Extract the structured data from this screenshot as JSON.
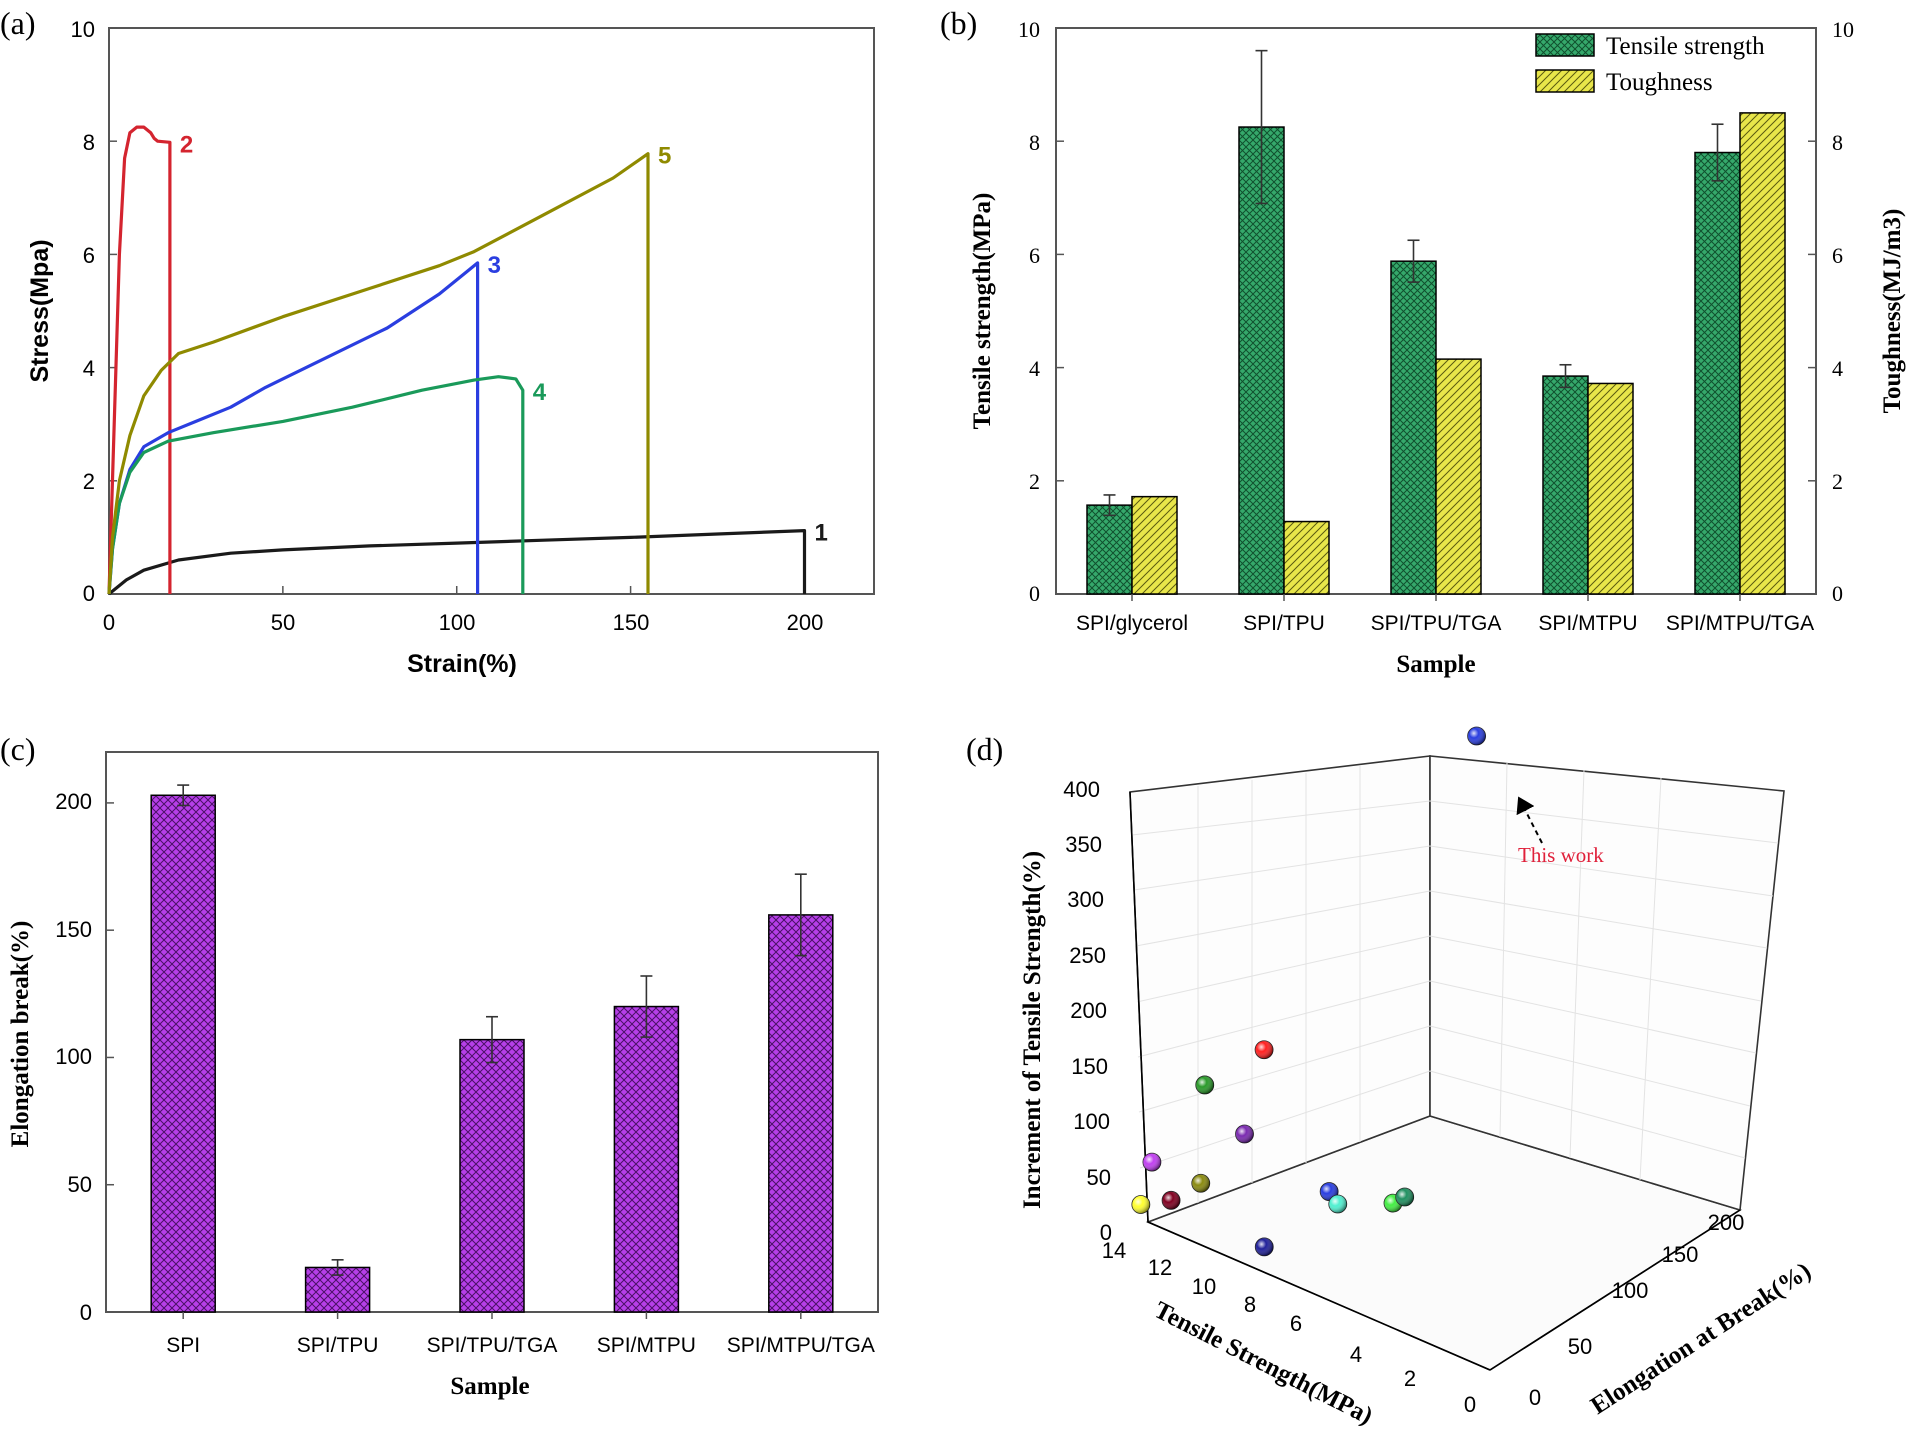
{
  "chart_data": [
    {
      "panel_label": "(a)",
      "type": "line",
      "xlabel": "Strain(%)",
      "ylabel": "Stress(Mpa)",
      "xlim": [
        0,
        220
      ],
      "ylim": [
        0,
        10
      ],
      "xticks": [
        "0",
        "50",
        "100",
        "150",
        "200"
      ],
      "xtick_values": [
        0,
        50,
        100,
        150,
        200
      ],
      "yticks": [
        "0",
        "2",
        "4",
        "6",
        "8",
        "10"
      ],
      "ytick_values": [
        0,
        2,
        4,
        6,
        8,
        10
      ],
      "series": [
        {
          "name": "1",
          "color": "#1a1a1a",
          "points": [
            [
              0,
              0
            ],
            [
              5,
              0.25
            ],
            [
              10,
              0.42
            ],
            [
              20,
              0.6
            ],
            [
              35,
              0.72
            ],
            [
              50,
              0.78
            ],
            [
              75,
              0.85
            ],
            [
              100,
              0.9
            ],
            [
              125,
              0.95
            ],
            [
              150,
              1.0
            ],
            [
              175,
              1.06
            ],
            [
              200,
              1.12
            ],
            [
              200,
              0
            ]
          ]
        },
        {
          "name": "2",
          "color": "#d4242f",
          "points": [
            [
              0,
              0
            ],
            [
              1.5,
              3
            ],
            [
              3,
              6
            ],
            [
              4.5,
              7.7
            ],
            [
              6,
              8.15
            ],
            [
              8,
              8.25
            ],
            [
              10,
              8.25
            ],
            [
              12,
              8.15
            ],
            [
              13,
              8.05
            ],
            [
              14,
              8.0
            ],
            [
              17.5,
              7.98
            ],
            [
              17.5,
              0
            ]
          ]
        },
        {
          "name": "3",
          "color": "#2a3ee0",
          "points": [
            [
              0,
              0
            ],
            [
              1,
              0.8
            ],
            [
              3,
              1.6
            ],
            [
              6,
              2.2
            ],
            [
              10,
              2.6
            ],
            [
              17,
              2.85
            ],
            [
              25,
              3.05
            ],
            [
              35,
              3.3
            ],
            [
              45,
              3.65
            ],
            [
              60,
              4.1
            ],
            [
              80,
              4.7
            ],
            [
              95,
              5.3
            ],
            [
              103,
              5.7
            ],
            [
              106,
              5.85
            ],
            [
              106,
              0
            ]
          ]
        },
        {
          "name": "4",
          "color": "#1a9a5a",
          "points": [
            [
              0,
              0
            ],
            [
              1,
              0.8
            ],
            [
              3,
              1.6
            ],
            [
              6,
              2.15
            ],
            [
              10,
              2.5
            ],
            [
              17,
              2.7
            ],
            [
              30,
              2.85
            ],
            [
              50,
              3.05
            ],
            [
              70,
              3.3
            ],
            [
              90,
              3.6
            ],
            [
              105,
              3.78
            ],
            [
              112,
              3.84
            ],
            [
              117,
              3.8
            ],
            [
              119,
              3.6
            ],
            [
              119,
              0
            ]
          ]
        },
        {
          "name": "5",
          "color": "#8f8a00",
          "points": [
            [
              0,
              0
            ],
            [
              1,
              1.0
            ],
            [
              3,
              2.0
            ],
            [
              6,
              2.8
            ],
            [
              10,
              3.5
            ],
            [
              15,
              3.95
            ],
            [
              20,
              4.25
            ],
            [
              30,
              4.45
            ],
            [
              50,
              4.9
            ],
            [
              75,
              5.4
            ],
            [
              95,
              5.8
            ],
            [
              105,
              6.05
            ],
            [
              125,
              6.7
            ],
            [
              145,
              7.35
            ],
            [
              155,
              7.78
            ],
            [
              155,
              0
            ]
          ]
        }
      ]
    },
    {
      "panel_label": "(b)",
      "type": "bar",
      "xlabel": "Sample",
      "ylabel": "Tensile strength(MPa)",
      "ylabel2": "Toughness(MJ/m3)",
      "ylim": [
        0,
        10
      ],
      "ylim2": [
        0,
        10
      ],
      "yticks": [
        "0",
        "2",
        "4",
        "6",
        "8",
        "10"
      ],
      "ytick_values": [
        0,
        2,
        4,
        6,
        8,
        10
      ],
      "categories": [
        "SPI/glycerol",
        "SPI/TPU",
        "SPI/TPU/TGA",
        "SPI/MTPU",
        "SPI/MTPU/TGA"
      ],
      "series": [
        {
          "name": "Tensile strength",
          "color": "#2e9e63",
          "values": [
            1.57,
            8.25,
            5.88,
            3.85,
            7.8
          ],
          "errors": [
            0.18,
            1.35,
            0.37,
            0.2,
            0.5
          ]
        },
        {
          "name": "Toughness",
          "color": "#e6e33c",
          "values": [
            1.72,
            1.28,
            4.15,
            3.72,
            8.5
          ]
        }
      ]
    },
    {
      "panel_label": "(c)",
      "type": "bar",
      "xlabel": "Sample",
      "ylabel": "Elongation break(%)",
      "ylim": [
        0,
        220
      ],
      "yticks": [
        "0",
        "50",
        "100",
        "150",
        "200"
      ],
      "ytick_values": [
        0,
        50,
        100,
        150,
        200
      ],
      "categories": [
        "SPI",
        "SPI/TPU",
        "SPI/TPU/TGA",
        "SPI/MTPU",
        "SPI/MTPU/TGA"
      ],
      "series": [
        {
          "name": "Elongation break",
          "color": "#b33ee6",
          "values": [
            203,
            17.5,
            107,
            120,
            156
          ],
          "errors": [
            4,
            3,
            9,
            12,
            16
          ]
        }
      ]
    },
    {
      "panel_label": "(d)",
      "type": "scatter",
      "xlabel": "Tensile Strength(MPa)",
      "ylabel": "Elongation at Break(%)",
      "zlabel": "Increment of Tensile Strength(%)",
      "xlim": [
        0,
        14
      ],
      "ylim": [
        0,
        200
      ],
      "zlim": [
        0,
        400
      ],
      "xticks": [
        "14",
        "12",
        "10",
        "8",
        "6",
        "4",
        "2",
        "0"
      ],
      "yticks": [
        "0",
        "50",
        "100",
        "150",
        "200"
      ],
      "zticks": [
        "0",
        "50",
        "100",
        "150",
        "200",
        "250",
        "300",
        "350",
        "400"
      ],
      "annotation": "This work",
      "points": [
        {
          "x": 7.8,
          "y": 156,
          "z": 397,
          "color": "#2a3ee0",
          "highlight": true
        },
        {
          "x": 11,
          "y": 40,
          "z": 160,
          "color": "#ff2020"
        },
        {
          "x": 13,
          "y": 30,
          "z": 115,
          "color": "#2a9a2a"
        },
        {
          "x": 11,
          "y": 22,
          "z": 95,
          "color": "#7a2ab0"
        },
        {
          "x": 14,
          "y": 5,
          "z": 52,
          "color": "#c040f0"
        },
        {
          "x": 13,
          "y": 0,
          "z": 30,
          "color": "#800020"
        },
        {
          "x": 12,
          "y": 5,
          "z": 52,
          "color": "#8a8a10"
        },
        {
          "x": 14,
          "y": -5,
          "z": 20,
          "color": "#ffff30"
        },
        {
          "x": 8,
          "y": 30,
          "z": 65,
          "color": "#2a3ee0"
        },
        {
          "x": 6,
          "y": 42,
          "z": 65,
          "color": "#44ee44"
        },
        {
          "x": 7,
          "y": 70,
          "z": 40,
          "color": "#209060"
        },
        {
          "x": 9,
          "y": 55,
          "z": 25,
          "color": "#50f0d0"
        },
        {
          "x": 10,
          "y": 15,
          "z": 5,
          "color": "#20209a"
        }
      ]
    }
  ]
}
